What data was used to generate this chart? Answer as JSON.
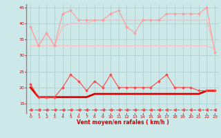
{
  "x": [
    0,
    1,
    2,
    3,
    4,
    5,
    6,
    7,
    8,
    9,
    10,
    11,
    12,
    13,
    14,
    15,
    16,
    17,
    18,
    19,
    20,
    21,
    22,
    23
  ],
  "series": [
    {
      "name": "rafales_high_spiky",
      "y": [
        39,
        33,
        37,
        33,
        43,
        44,
        41,
        41,
        41,
        41,
        43,
        44,
        39,
        37,
        41,
        41,
        41,
        43,
        43,
        43,
        43,
        43,
        45,
        31
      ],
      "color": "#ff9999",
      "linewidth": 0.8,
      "marker": "D",
      "markersize": 1.8,
      "linestyle": "-",
      "zorder": 3
    },
    {
      "name": "moy_high_trend",
      "y": [
        39,
        33,
        37,
        33,
        39,
        40,
        40,
        40,
        41,
        41,
        41,
        41,
        41,
        41,
        41,
        41,
        41,
        41,
        41,
        41,
        41,
        41,
        41,
        32
      ],
      "color": "#ffbbbb",
      "linewidth": 1.0,
      "marker": null,
      "markersize": 0,
      "linestyle": "-",
      "zorder": 2
    },
    {
      "name": "baseline_33",
      "y": [
        33,
        33,
        33,
        33,
        33,
        33,
        33,
        33,
        33,
        33,
        33,
        33,
        33,
        33,
        33,
        33,
        33,
        33,
        33,
        33,
        33,
        33,
        33,
        32
      ],
      "color": "#ffbbbb",
      "linewidth": 0.8,
      "marker": null,
      "markersize": 0,
      "linestyle": "-",
      "zorder": 1
    },
    {
      "name": "wind_spiky",
      "y": [
        21,
        17,
        17,
        17,
        20,
        24,
        22,
        19,
        22,
        20,
        24,
        20,
        20,
        20,
        20,
        20,
        22,
        24,
        20,
        20,
        20,
        19,
        19,
        19
      ],
      "color": "#ff4444",
      "linewidth": 0.8,
      "marker": "D",
      "markersize": 1.8,
      "linestyle": "-",
      "zorder": 4
    },
    {
      "name": "wind_mean_thick",
      "y": [
        20,
        17,
        17,
        17,
        17,
        17,
        17,
        17,
        18,
        18,
        18,
        18,
        18,
        18,
        18,
        18,
        18,
        18,
        18,
        18,
        18,
        18,
        19,
        19
      ],
      "color": "#dd0000",
      "linewidth": 2.0,
      "marker": null,
      "markersize": 0,
      "linestyle": "-",
      "zorder": 3
    },
    {
      "name": "wind_mean_thin",
      "y": [
        20,
        17,
        17,
        17,
        17,
        17,
        17,
        17,
        18,
        18,
        18,
        18,
        18,
        18,
        18,
        18,
        18,
        18,
        18,
        18,
        18,
        18,
        19,
        19
      ],
      "color": "#ff6666",
      "linewidth": 0.8,
      "marker": null,
      "markersize": 0,
      "linestyle": "-",
      "zorder": 2
    },
    {
      "name": "dashed_low",
      "y": [
        13,
        13,
        13,
        13,
        13,
        13,
        13,
        13,
        13,
        13,
        13,
        13,
        13,
        13,
        13,
        13,
        13,
        13,
        13,
        13,
        13,
        13,
        13,
        13
      ],
      "color": "#ff4444",
      "linewidth": 0.8,
      "marker": "<",
      "markersize": 3,
      "linestyle": "--",
      "zorder": 1
    }
  ],
  "xlabel": "Vent moyen/en rafales ( km/h )",
  "ylim": [
    12,
    46
  ],
  "yticks": [
    15,
    20,
    25,
    30,
    35,
    40,
    45
  ],
  "xticks": [
    0,
    1,
    2,
    3,
    4,
    5,
    6,
    7,
    8,
    9,
    10,
    11,
    12,
    13,
    14,
    15,
    16,
    17,
    18,
    19,
    20,
    21,
    22,
    23
  ],
  "bg_color": "#cce8e8",
  "grid_color": "#aacccc",
  "xlabel_color": "#cc0000",
  "tick_color": "#cc0000",
  "left_spine_color": "#888888"
}
